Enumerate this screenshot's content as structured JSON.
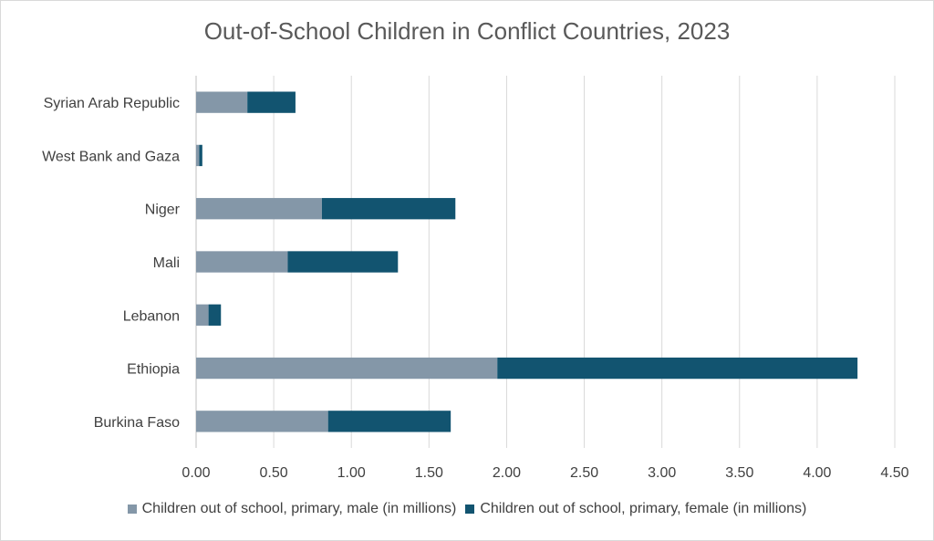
{
  "chart_data": {
    "type": "bar",
    "orientation": "horizontal",
    "stacked": true,
    "title": "Out-of-School Children in Conflict Countries, 2023",
    "categories": [
      "Syrian Arab Republic",
      "West Bank and Gaza",
      "Niger",
      "Mali",
      "Lebanon",
      "Ethiopia",
      "Burkina Faso"
    ],
    "series": [
      {
        "name": "Children out of school, primary, male (in millions)",
        "color": "#8497a8",
        "values": [
          0.33,
          0.02,
          0.81,
          0.59,
          0.08,
          1.94,
          0.85
        ]
      },
      {
        "name": "Children out of school, primary, female (in millions)",
        "color": "#125470",
        "values": [
          0.31,
          0.02,
          0.86,
          0.71,
          0.08,
          2.32,
          0.79
        ]
      }
    ],
    "xlim": [
      0,
      4.5
    ],
    "xticks": [
      "0.00",
      "0.50",
      "1.00",
      "1.50",
      "2.00",
      "2.50",
      "3.00",
      "3.50",
      "4.00",
      "4.50"
    ],
    "gridlines": "vertical",
    "legend_position": "bottom"
  }
}
